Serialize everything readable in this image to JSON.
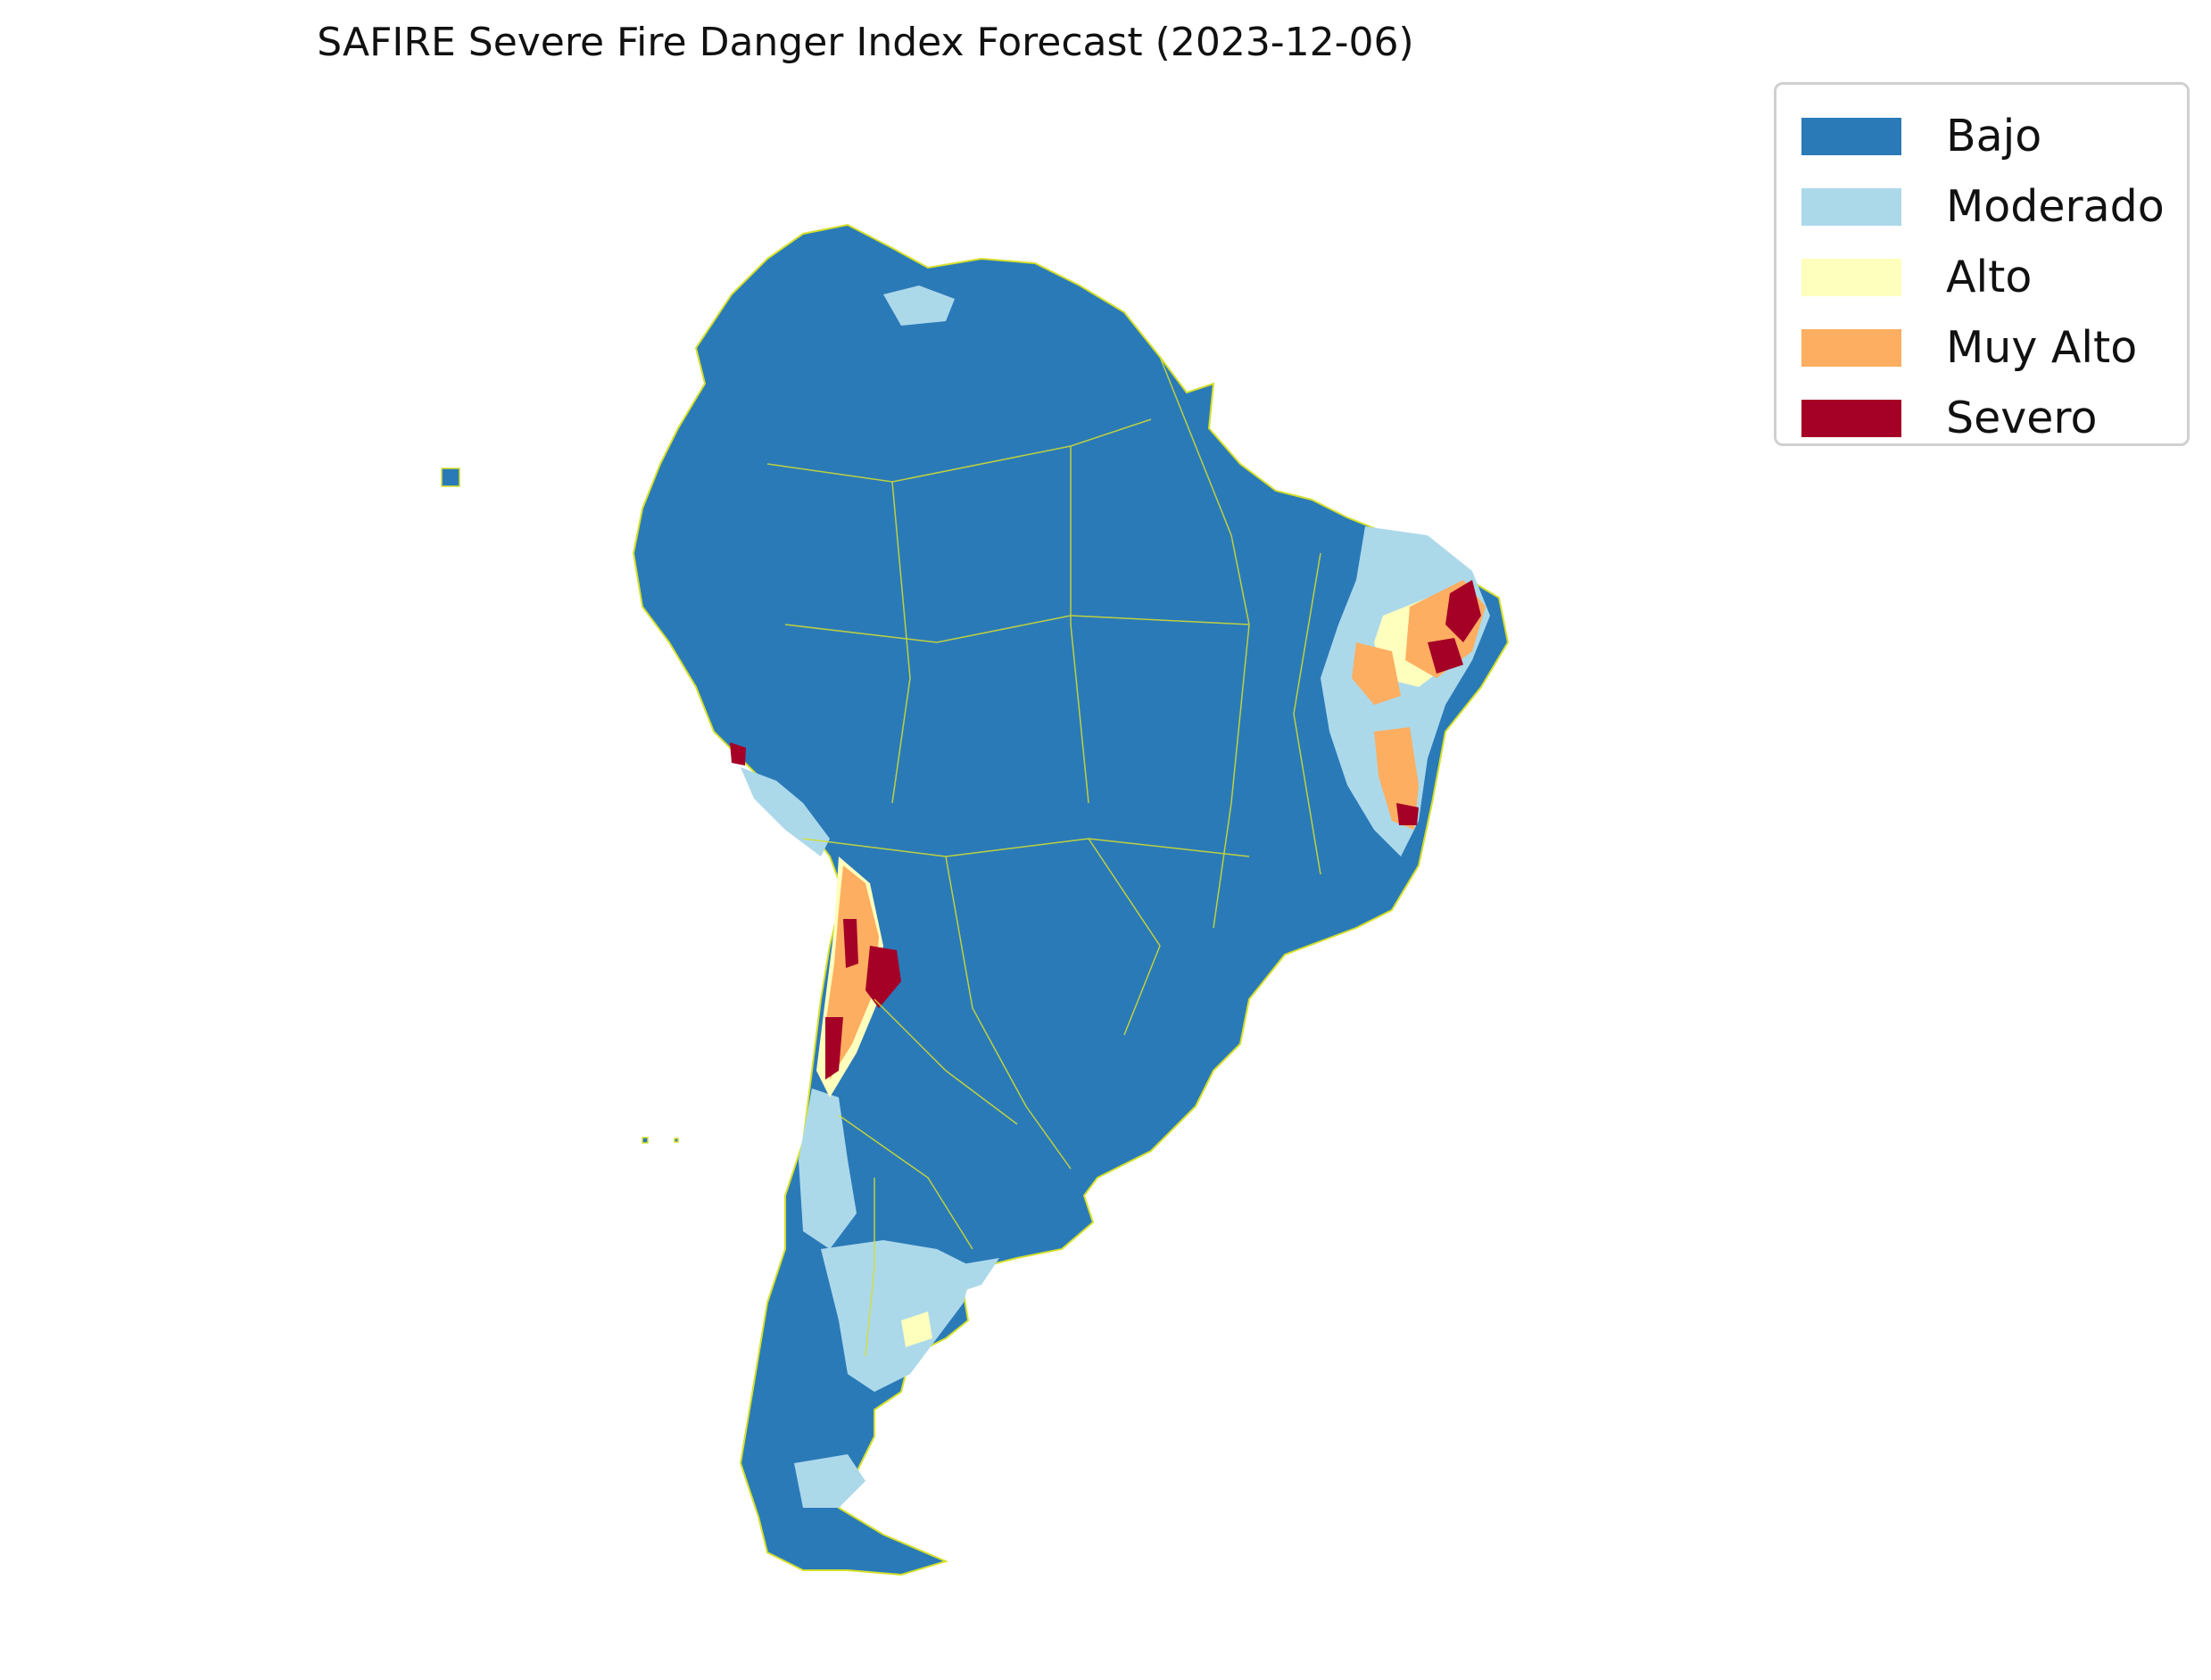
{
  "title": "SAFIRE Severe Fire Danger Index Forecast (2023-12-06)",
  "legend": {
    "placement": "top-right",
    "items": [
      {
        "label": "Bajo",
        "color": "#2b7ab8"
      },
      {
        "label": "Moderado",
        "color": "#acd9ea"
      },
      {
        "label": "Alto",
        "color": "#fefebd"
      },
      {
        "label": "Muy Alto",
        "color": "#fdae61"
      },
      {
        "label": "Severo",
        "color": "#a50026"
      }
    ]
  },
  "boundary_color": "#d6e02a"
}
